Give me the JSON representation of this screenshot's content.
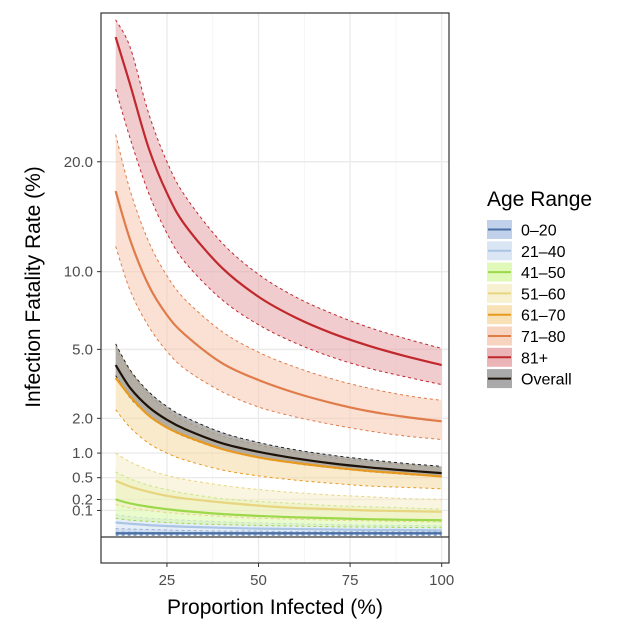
{
  "chart_data": {
    "type": "line",
    "title": "",
    "xlabel": "Proportion Infected (%)",
    "ylabel": "Infection Fatality Rate (%)",
    "xlim": [
      7,
      102
    ],
    "x_ticks": [
      25,
      50,
      75,
      100
    ],
    "x_tick_labels": [
      "25",
      "50",
      "75",
      "100"
    ],
    "y_scale": "sqrt",
    "ylim": [
      0,
      39
    ],
    "y_ticks": [
      0.1,
      0.2,
      0.5,
      1.0,
      2.0,
      5.0,
      10.0,
      20.0
    ],
    "y_tick_labels": [
      "0.1",
      "0.2",
      "0.5",
      "1.0",
      "2.0",
      "5.0",
      "10.0",
      "20.0"
    ],
    "grid": true,
    "legend_title": "Age Range",
    "legend_position": "right",
    "x": [
      11,
      15,
      20,
      25,
      30,
      40,
      50,
      60,
      70,
      80,
      90,
      100
    ],
    "series": [
      {
        "name": "0–20",
        "color": "#4a6fa5",
        "fill": "#b3c6e6",
        "values": [
          0.002,
          0.002,
          0.002,
          0.002,
          0.002,
          0.002,
          0.002,
          0.002,
          0.002,
          0.002,
          0.002,
          0.002
        ],
        "lower": [
          0.0005,
          0.0005,
          0.0005,
          0.0005,
          0.0005,
          0.0005,
          0.0005,
          0.0005,
          0.0005,
          0.0005,
          0.0005,
          0.0005
        ],
        "upper": [
          0.01,
          0.009,
          0.008,
          0.007,
          0.006,
          0.005,
          0.005,
          0.004,
          0.004,
          0.004,
          0.004,
          0.004
        ]
      },
      {
        "name": "21–40",
        "color": "#aac4e4",
        "fill": "#d2e0f2",
        "values": [
          0.03,
          0.025,
          0.02,
          0.017,
          0.015,
          0.012,
          0.01,
          0.009,
          0.008,
          0.007,
          0.007,
          0.006
        ],
        "lower": [
          0.005,
          0.004,
          0.003,
          0.003,
          0.003,
          0.002,
          0.002,
          0.002,
          0.002,
          0.002,
          0.002,
          0.002
        ],
        "upper": [
          0.07,
          0.06,
          0.05,
          0.045,
          0.04,
          0.033,
          0.028,
          0.025,
          0.022,
          0.02,
          0.019,
          0.018
        ]
      },
      {
        "name": "41–50",
        "color": "#9bd84a",
        "fill": "#d9f7a6",
        "values": [
          0.2,
          0.16,
          0.13,
          0.11,
          0.095,
          0.075,
          0.063,
          0.055,
          0.05,
          0.045,
          0.042,
          0.04
        ],
        "lower": [
          0.05,
          0.04,
          0.035,
          0.03,
          0.026,
          0.022,
          0.019,
          0.017,
          0.015,
          0.014,
          0.013,
          0.012
        ],
        "upper": [
          0.6,
          0.48,
          0.38,
          0.32,
          0.27,
          0.21,
          0.18,
          0.16,
          0.14,
          0.13,
          0.12,
          0.11
        ]
      },
      {
        "name": "51–60",
        "color": "#e8d580",
        "fill": "#f5edc6",
        "values": [
          0.45,
          0.36,
          0.29,
          0.24,
          0.21,
          0.17,
          0.14,
          0.12,
          0.11,
          0.1,
          0.095,
          0.09
        ],
        "lower": [
          0.15,
          0.12,
          0.1,
          0.085,
          0.075,
          0.06,
          0.05,
          0.045,
          0.04,
          0.037,
          0.034,
          0.032
        ],
        "upper": [
          1.0,
          0.8,
          0.64,
          0.54,
          0.47,
          0.38,
          0.32,
          0.28,
          0.25,
          0.23,
          0.21,
          0.2
        ]
      },
      {
        "name": "61–70",
        "color": "#e89a1f",
        "fill": "#f5d9a3",
        "values": [
          3.6,
          2.8,
          2.1,
          1.7,
          1.45,
          1.1,
          0.9,
          0.78,
          0.69,
          0.62,
          0.57,
          0.52
        ],
        "lower": [
          2.3,
          1.7,
          1.25,
          1.0,
          0.84,
          0.64,
          0.53,
          0.46,
          0.41,
          0.37,
          0.35,
          0.33
        ],
        "upper": [
          5.1,
          3.9,
          2.9,
          2.3,
          1.9,
          1.45,
          1.2,
          1.03,
          0.9,
          0.81,
          0.74,
          0.68
        ]
      },
      {
        "name": "71–80",
        "color": "#e07b4a",
        "fill": "#f5c8b0",
        "values": [
          17.0,
          12.5,
          9.0,
          7.0,
          5.8,
          4.3,
          3.5,
          2.95,
          2.55,
          2.25,
          2.05,
          1.9
        ],
        "lower": [
          12.0,
          8.6,
          6.3,
          4.9,
          4.0,
          3.0,
          2.4,
          2.05,
          1.8,
          1.6,
          1.45,
          1.35
        ],
        "upper": [
          23.0,
          17.0,
          12.4,
          9.7,
          8.0,
          6.0,
          4.85,
          4.1,
          3.55,
          3.15,
          2.85,
          2.65
        ]
      },
      {
        "name": "81+",
        "color": "#c0282d",
        "fill": "#e6a3a5",
        "values": [
          35.5,
          29.0,
          21.5,
          16.8,
          13.8,
          10.3,
          8.2,
          6.85,
          5.9,
          5.2,
          4.65,
          4.2
        ],
        "lower": [
          28.5,
          22.5,
          16.8,
          13.1,
          10.7,
          8.0,
          6.4,
          5.35,
          4.6,
          4.05,
          3.65,
          3.3
        ],
        "upper": [
          38.0,
          34.0,
          25.5,
          20.0,
          16.5,
          12.3,
          9.8,
          8.2,
          7.1,
          6.25,
          5.6,
          5.05
        ]
      },
      {
        "name": "Overall",
        "color": "#1c1208",
        "fill": "#9a9a9a",
        "values": [
          4.2,
          3.15,
          2.4,
          1.95,
          1.65,
          1.25,
          1.03,
          0.88,
          0.77,
          0.69,
          0.63,
          0.58
        ],
        "lower": [
          3.7,
          2.75,
          2.1,
          1.7,
          1.43,
          1.09,
          0.9,
          0.77,
          0.68,
          0.61,
          0.56,
          0.52
        ],
        "upper": [
          5.3,
          3.95,
          3.0,
          2.42,
          2.04,
          1.55,
          1.27,
          1.08,
          0.95,
          0.85,
          0.77,
          0.71
        ]
      }
    ]
  }
}
